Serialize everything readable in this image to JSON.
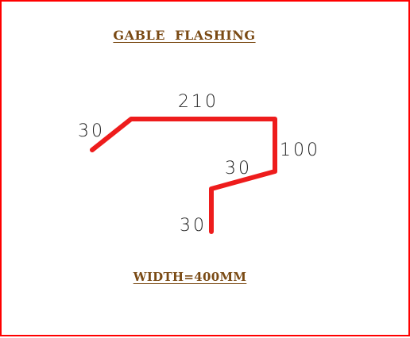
{
  "title": "GABLE  FLASHING",
  "width_label": "WIDTH=400MM",
  "dimensions": {
    "first_lip": "30",
    "top": "210",
    "right_drop": "100",
    "slope": "30",
    "bottom_leg": "30"
  },
  "colors": {
    "border": "#ff0000",
    "profile": "#ee1c1c",
    "title_text": "#7a4a14",
    "dimension_text": "#222222"
  }
}
